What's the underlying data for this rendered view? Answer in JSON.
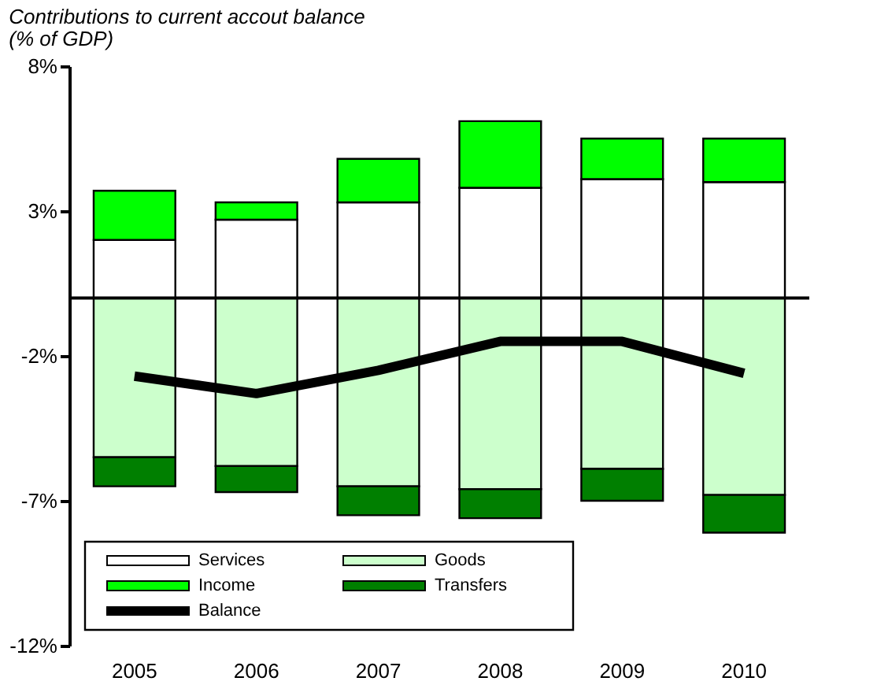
{
  "chart_data": {
    "type": "bar",
    "stacked": true,
    "title": "Contributions to current accout balance",
    "subtitle": "(% of GDP)",
    "categories": [
      "2005",
      "2006",
      "2007",
      "2008",
      "2009",
      "2010"
    ],
    "series": [
      {
        "name": "Services",
        "color": "#ffffff",
        "values": [
          2.0,
          2.7,
          3.3,
          3.8,
          4.1,
          4.0
        ]
      },
      {
        "name": "Goods",
        "color": "#ccffcc",
        "values": [
          -5.5,
          -5.8,
          -6.5,
          -6.6,
          -5.9,
          -6.8
        ]
      },
      {
        "name": "Income",
        "color": "#00ff00",
        "values": [
          1.7,
          0.6,
          1.5,
          2.3,
          1.4,
          1.5
        ]
      },
      {
        "name": "Transfers",
        "color": "#007f00",
        "values": [
          -1.0,
          -0.9,
          -1.0,
          -1.0,
          -1.1,
          -1.3
        ]
      },
      {
        "name": "Balance",
        "type": "line",
        "color": "#000000",
        "values": [
          -2.7,
          -3.3,
          -2.5,
          -1.5,
          -1.5,
          -2.6
        ]
      }
    ],
    "ylim": [
      -12,
      8
    ],
    "yticks": [
      {
        "value": -12,
        "label": "-12%"
      },
      {
        "value": -7,
        "label": "-7%"
      },
      {
        "value": -2,
        "label": "-2%"
      },
      {
        "value": 3,
        "label": "3%"
      },
      {
        "value": 8,
        "label": "8%"
      }
    ],
    "ref_lines": [
      {
        "axis": "y",
        "value": 0,
        "color": "#000000"
      }
    ],
    "grid": false,
    "legend": "bottom left"
  }
}
